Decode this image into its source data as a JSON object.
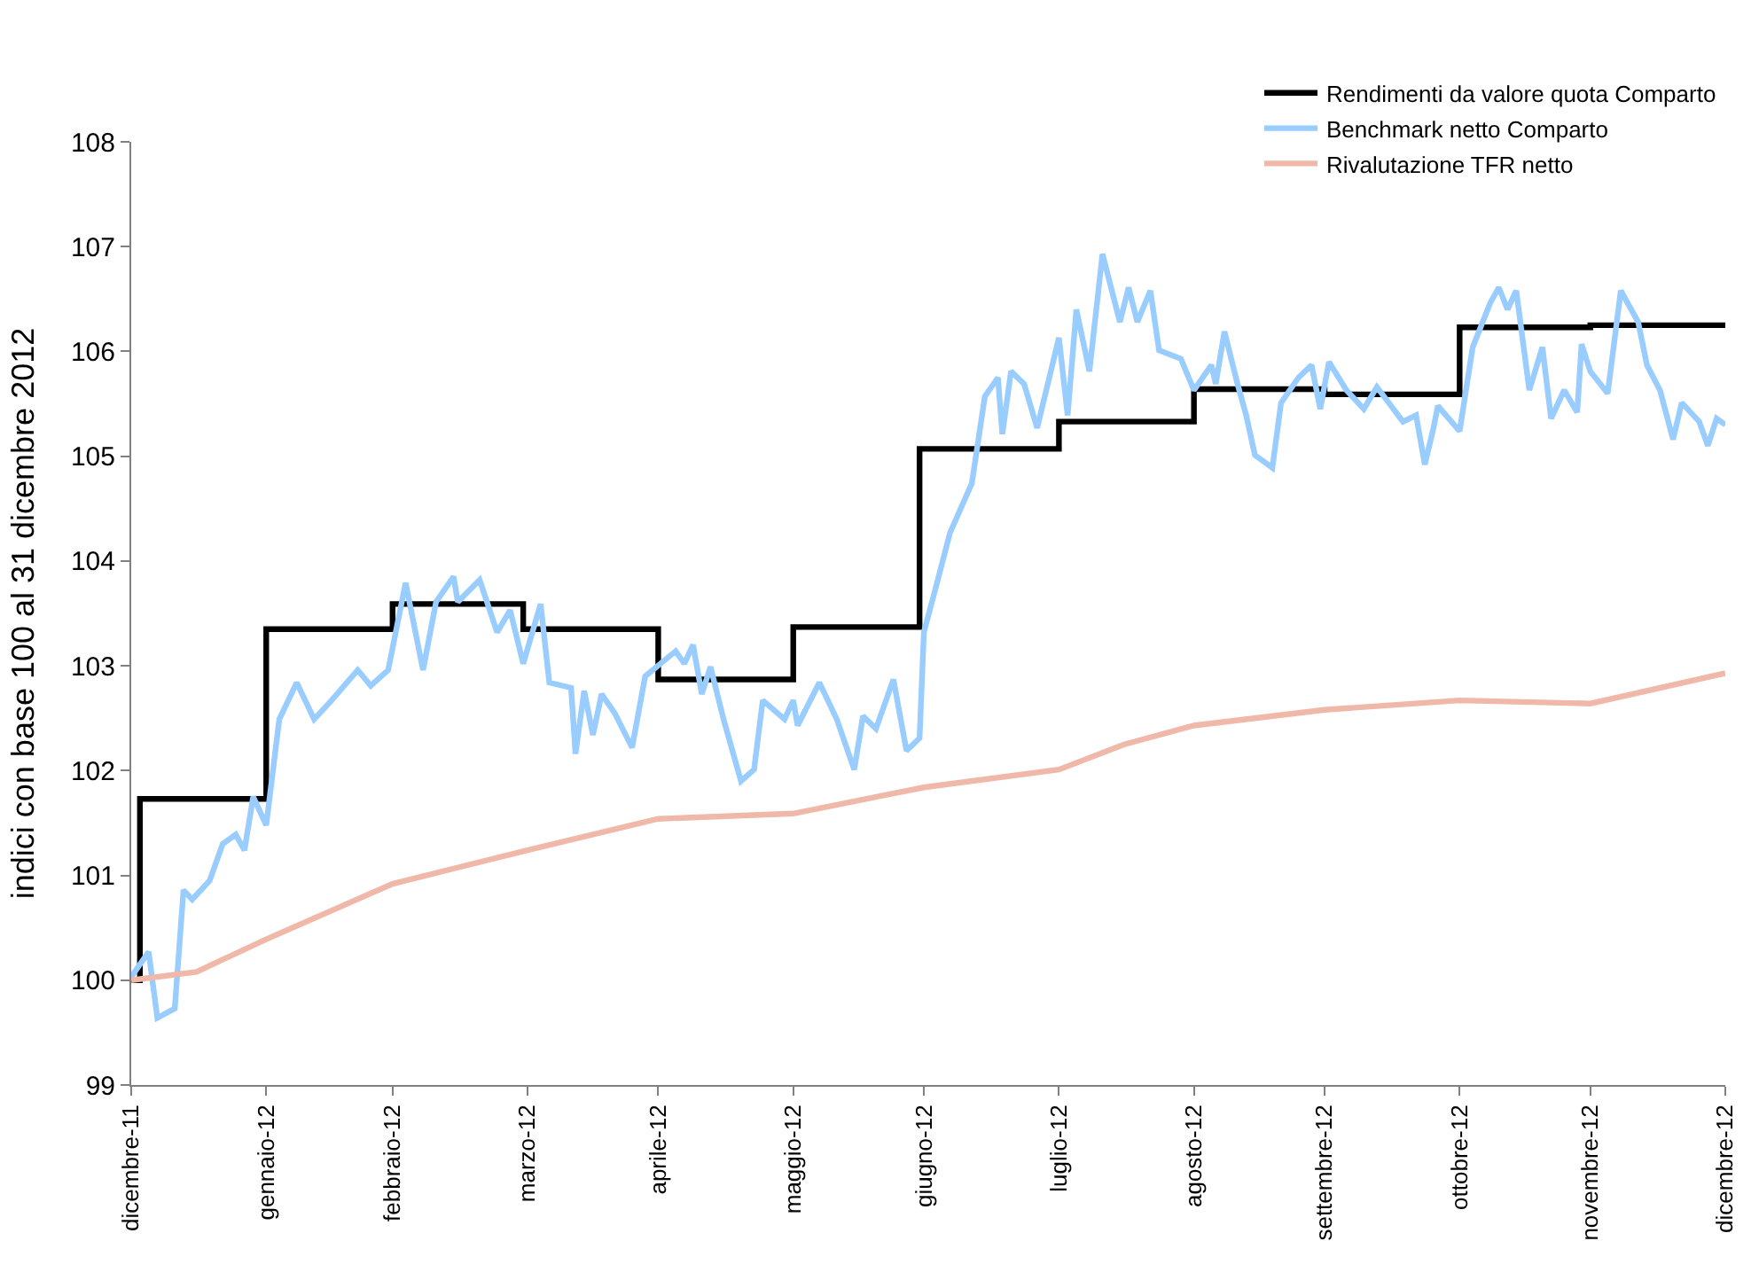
{
  "chart_data": {
    "type": "line",
    "ylabel": "indici con base 100 al 31 dicembre 2012",
    "xlim": [
      "2011-12-31",
      "2012-12-31"
    ],
    "xticks": [
      {
        "value": "2011-12-31",
        "label": "dicembre-11"
      },
      {
        "value": "2012-01-31",
        "label": "gennaio-12"
      },
      {
        "value": "2012-02-29",
        "label": "febbraio-12"
      },
      {
        "value": "2012-03-31",
        "label": "marzo-12"
      },
      {
        "value": "2012-04-30",
        "label": "aprile-12"
      },
      {
        "value": "2012-05-31",
        "label": "maggio-12"
      },
      {
        "value": "2012-06-30",
        "label": "giugno-12"
      },
      {
        "value": "2012-07-31",
        "label": "luglio-12"
      },
      {
        "value": "2012-08-31",
        "label": "agosto-12"
      },
      {
        "value": "2012-09-30",
        "label": "settembre-12"
      },
      {
        "value": "2012-10-31",
        "label": "ottobre-12"
      },
      {
        "value": "2012-11-30",
        "label": "novembre-12"
      },
      {
        "value": "2012-12-31",
        "label": "dicembre-12"
      }
    ],
    "ylim": [
      99,
      108
    ],
    "yticks": [
      99,
      100,
      101,
      102,
      103,
      104,
      105,
      106,
      107,
      108
    ],
    "legend": "top right",
    "marker": "none",
    "line_style": "solid",
    "series": [
      {
        "name": "Rendimenti da valore quota Comparto",
        "type": "step",
        "color": "#000000",
        "x": [
          "2011-12-31",
          "2012-01-02",
          "2012-01-31",
          "2012-02-29",
          "2012-03-30",
          "2012-04-30",
          "2012-05-31",
          "2012-06-29",
          "2012-07-31",
          "2012-08-31",
          "2012-09-30",
          "2012-10-31",
          "2012-11-30",
          "2012-12-31"
        ],
        "values": [
          100.0,
          101.73,
          103.35,
          103.59,
          103.35,
          102.87,
          103.37,
          105.07,
          105.33,
          105.64,
          105.59,
          106.23,
          106.25,
          106.25
        ]
      },
      {
        "name": "Benchmark netto Comparto",
        "color": "#99ccff",
        "x": [
          "2011-12-31",
          "2012-01-04",
          "2012-01-06",
          "2012-01-10",
          "2012-01-12",
          "2012-01-14",
          "2012-01-18",
          "2012-01-21",
          "2012-01-24",
          "2012-01-26",
          "2012-01-28",
          "2012-01-31",
          "2012-02-03",
          "2012-02-07",
          "2012-02-11",
          "2012-02-15",
          "2012-02-21",
          "2012-02-24",
          "2012-02-28",
          "2012-03-03",
          "2012-03-07",
          "2012-03-10",
          "2012-03-14",
          "2012-03-15",
          "2012-03-20",
          "2012-03-24",
          "2012-03-27",
          "2012-03-30",
          "2012-04-03",
          "2012-04-05",
          "2012-04-10",
          "2012-04-11",
          "2012-04-13",
          "2012-04-15",
          "2012-04-17",
          "2012-04-20",
          "2012-04-24",
          "2012-04-27",
          "2012-05-04",
          "2012-05-06",
          "2012-05-08",
          "2012-05-10",
          "2012-05-12",
          "2012-05-15",
          "2012-05-19",
          "2012-05-22",
          "2012-05-24",
          "2012-05-29",
          "2012-05-31",
          "2012-06-01",
          "2012-06-06",
          "2012-06-10",
          "2012-06-14",
          "2012-06-16",
          "2012-06-19",
          "2012-06-23",
          "2012-06-26",
          "2012-06-29",
          "2012-06-30",
          "2012-07-03",
          "2012-07-06",
          "2012-07-11",
          "2012-07-14",
          "2012-07-17",
          "2012-07-18",
          "2012-07-20",
          "2012-07-23",
          "2012-07-26",
          "2012-07-31",
          "2012-08-02",
          "2012-08-04",
          "2012-08-07",
          "2012-08-10",
          "2012-08-14",
          "2012-08-16",
          "2012-08-18",
          "2012-08-21",
          "2012-08-23",
          "2012-08-28",
          "2012-08-31",
          "2012-09-04",
          "2012-09-05",
          "2012-09-07",
          "2012-09-10",
          "2012-09-12",
          "2012-09-14",
          "2012-09-18",
          "2012-09-20",
          "2012-09-24",
          "2012-09-27",
          "2012-09-29",
          "2012-10-01",
          "2012-10-05",
          "2012-10-09",
          "2012-10-12",
          "2012-10-18",
          "2012-10-21",
          "2012-10-23",
          "2012-10-25",
          "2012-10-26",
          "2012-10-31",
          "2012-11-03",
          "2012-11-07",
          "2012-11-09",
          "2012-11-11",
          "2012-11-13",
          "2012-11-16",
          "2012-11-19",
          "2012-11-21",
          "2012-11-24",
          "2012-11-27",
          "2012-11-28",
          "2012-11-30",
          "2012-12-04",
          "2012-12-07",
          "2012-12-11",
          "2012-12-13",
          "2012-12-16",
          "2012-12-19",
          "2012-12-21",
          "2012-12-25",
          "2012-12-27",
          "2012-12-29",
          "2012-12-31"
        ],
        "values": [
          100.03,
          100.27,
          99.64,
          99.73,
          100.86,
          100.77,
          100.95,
          101.3,
          101.39,
          101.24,
          101.75,
          101.48,
          102.49,
          102.84,
          102.49,
          102.67,
          102.96,
          102.81,
          102.96,
          103.79,
          102.96,
          103.61,
          103.85,
          103.61,
          103.82,
          103.32,
          103.53,
          103.02,
          103.59,
          102.84,
          102.79,
          102.16,
          102.76,
          102.34,
          102.73,
          102.55,
          102.22,
          102.9,
          103.14,
          103.02,
          103.2,
          102.73,
          102.99,
          102.49,
          101.9,
          102.01,
          102.67,
          102.49,
          102.67,
          102.43,
          102.84,
          102.49,
          102.01,
          102.52,
          102.4,
          102.87,
          102.19,
          102.31,
          103.32,
          103.79,
          104.27,
          104.74,
          105.57,
          105.75,
          105.21,
          105.81,
          105.69,
          105.27,
          106.13,
          105.39,
          106.4,
          105.81,
          106.93,
          106.28,
          106.61,
          106.28,
          106.58,
          106.01,
          105.93,
          105.63,
          105.87,
          105.69,
          106.19,
          105.69,
          105.39,
          105.01,
          104.89,
          105.51,
          105.75,
          105.87,
          105.45,
          105.9,
          105.63,
          105.45,
          105.66,
          105.33,
          105.39,
          104.92,
          105.27,
          105.48,
          105.24,
          106.04,
          106.46,
          106.61,
          106.4,
          106.58,
          105.63,
          106.04,
          105.36,
          105.63,
          105.42,
          106.07,
          105.81,
          105.6,
          106.58,
          106.28,
          105.87,
          105.63,
          105.16,
          105.51,
          105.33,
          105.1,
          105.36,
          105.3
        ]
      },
      {
        "name": "Rivalutazione TFR netto",
        "color": "#f0b8a8",
        "x": [
          "2011-12-31",
          "2012-01-15",
          "2012-01-31",
          "2012-02-29",
          "2012-03-31",
          "2012-04-30",
          "2012-05-31",
          "2012-06-30",
          "2012-07-31",
          "2012-08-15",
          "2012-08-31",
          "2012-09-30",
          "2012-10-31",
          "2012-11-30",
          "2012-12-31"
        ],
        "values": [
          100.0,
          100.08,
          100.39,
          100.92,
          101.24,
          101.54,
          101.59,
          101.84,
          102.01,
          102.25,
          102.43,
          102.58,
          102.67,
          102.64,
          102.93
        ]
      }
    ]
  }
}
